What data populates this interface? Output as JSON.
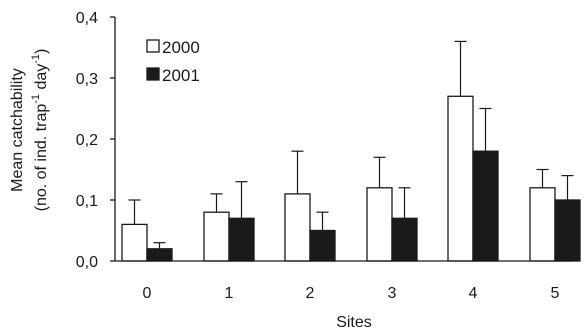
{
  "chart_data": {
    "type": "bar",
    "title": "",
    "xlabel": "Sites",
    "ylabel_line1": "Mean catchability",
    "ylabel_line2_parts": {
      "a": "(no. of ind. trap",
      "sup1": "-1",
      "b": " day",
      "sup2": "-1",
      "c": ")"
    },
    "categories": [
      "0",
      "1",
      "2",
      "3",
      "4",
      "5"
    ],
    "y_ticks": [
      "0,0",
      "0,1",
      "0,2",
      "0,3",
      "0,4"
    ],
    "ylim": [
      0,
      0.4
    ],
    "grid": false,
    "legend_position": "top-left",
    "series": [
      {
        "name": "2000",
        "fill": "#ffffff",
        "values": [
          0.06,
          0.08,
          0.11,
          0.12,
          0.27,
          0.12
        ],
        "error_upper": [
          0.1,
          0.11,
          0.18,
          0.17,
          0.36,
          0.15
        ]
      },
      {
        "name": "2001",
        "fill": "#1a1a1a",
        "values": [
          0.02,
          0.07,
          0.05,
          0.07,
          0.18,
          0.1
        ],
        "error_upper": [
          0.03,
          0.13,
          0.08,
          0.12,
          0.25,
          0.14
        ]
      }
    ]
  }
}
